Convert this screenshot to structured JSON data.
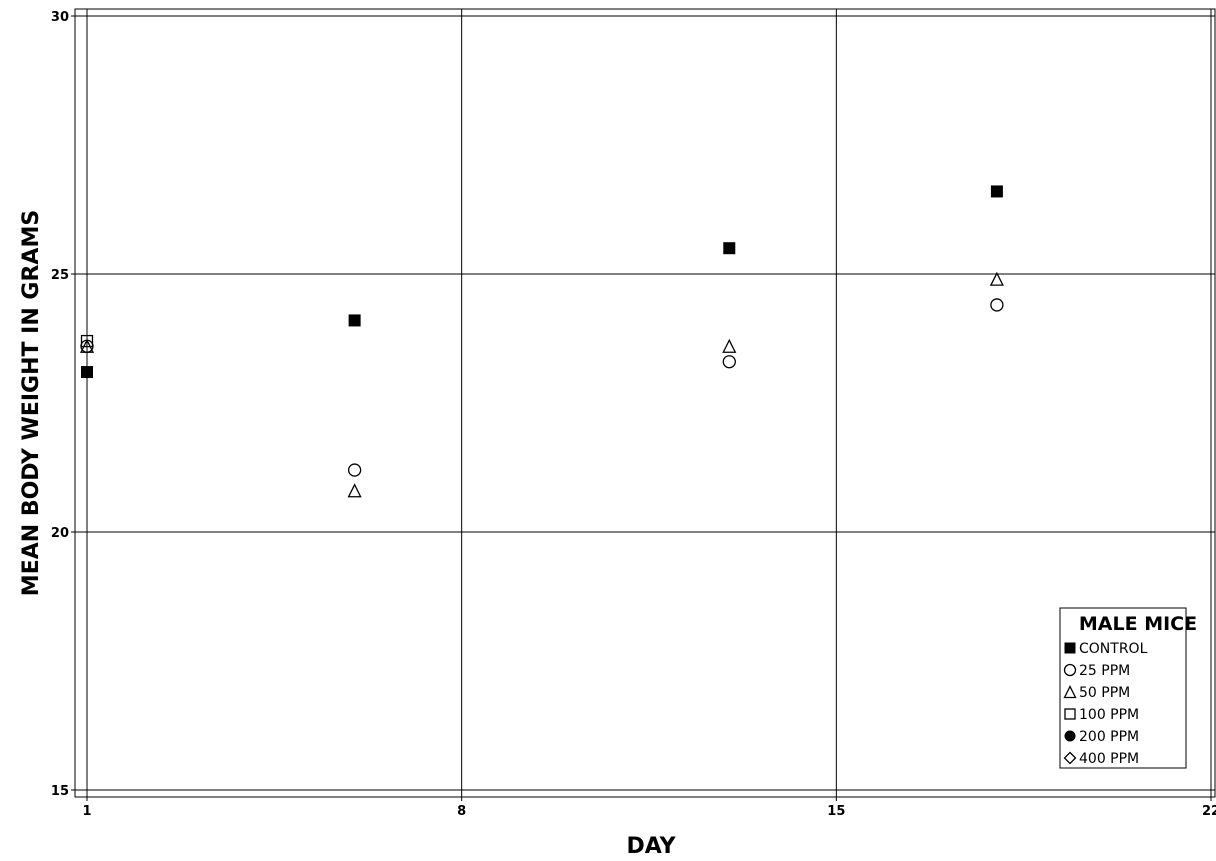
{
  "chart_data": {
    "type": "scatter",
    "title": "",
    "xlabel": "DAY",
    "ylabel": "MEAN BODY WEIGHT IN GRAMS",
    "xlim": [
      1,
      22
    ],
    "ylim": [
      15,
      30
    ],
    "x_ticks": [
      1,
      8,
      15,
      22
    ],
    "x_tick_labels": [
      "1",
      "8",
      "15",
      "22"
    ],
    "y_ticks": [
      15,
      20,
      25,
      30
    ],
    "y_tick_labels": [
      "15",
      "20",
      "25",
      "30"
    ],
    "grid": true,
    "legend": {
      "title": "MALE MICE",
      "placement": "bottom-right"
    },
    "series": [
      {
        "name": "CONTROL",
        "marker": "filled-square",
        "points": [
          [
            1,
            23.1
          ],
          [
            6,
            24.1
          ],
          [
            13,
            25.5
          ],
          [
            18,
            26.6
          ]
        ]
      },
      {
        "name": "25 PPM",
        "marker": "open-circle",
        "points": [
          [
            1,
            23.6
          ],
          [
            6,
            21.2
          ],
          [
            13,
            23.3
          ],
          [
            18,
            24.4
          ]
        ]
      },
      {
        "name": "50 PPM",
        "marker": "open-triangle",
        "points": [
          [
            1,
            23.6
          ],
          [
            6,
            20.8
          ],
          [
            13,
            23.6
          ],
          [
            18,
            24.9
          ]
        ]
      },
      {
        "name": "100 PPM",
        "marker": "open-square",
        "points": [
          [
            1,
            23.7
          ]
        ]
      },
      {
        "name": "200 PPM",
        "marker": "filled-circle",
        "points": []
      },
      {
        "name": "400 PPM",
        "marker": "open-diamond",
        "points": []
      }
    ]
  }
}
